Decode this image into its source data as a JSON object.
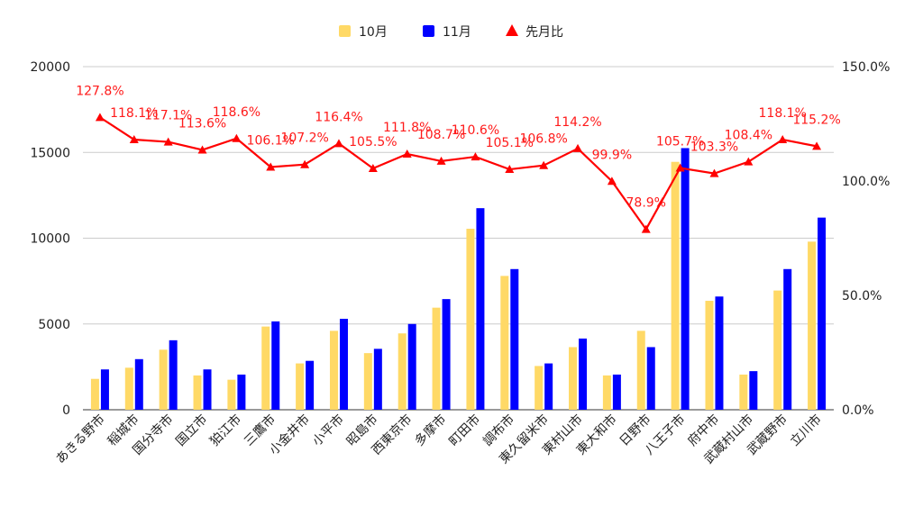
{
  "chart_data": {
    "type": "bar",
    "categories": [
      "あきる野市",
      "稲城市",
      "国分寺市",
      "国立市",
      "狛江市",
      "三鷹市",
      "小金井市",
      "小平市",
      "昭島市",
      "西東京市",
      "多摩市",
      "町田市",
      "調布市",
      "東久留米市",
      "東村山市",
      "東大和市",
      "日野市",
      "八王子市",
      "府中市",
      "武蔵村山市",
      "武蔵野市",
      "立川市"
    ],
    "series": [
      {
        "name": "10月",
        "type": "bar",
        "axis": "left",
        "color": "#ffd966",
        "values": [
          1800,
          2450,
          3500,
          2000,
          1750,
          4850,
          2700,
          4600,
          3300,
          4450,
          5950,
          10550,
          7800,
          2550,
          3650,
          2000,
          4600,
          14450,
          6350,
          2050,
          6950,
          9800
        ]
      },
      {
        "name": "11月",
        "type": "bar",
        "axis": "left",
        "color": "#0000ff",
        "values": [
          2350,
          2950,
          4050,
          2350,
          2050,
          5150,
          2850,
          5300,
          3550,
          5000,
          6450,
          11750,
          8200,
          2700,
          4150,
          2050,
          3650,
          15250,
          6600,
          2250,
          8200,
          11200
        ]
      },
      {
        "name": "先月比",
        "type": "line",
        "axis": "right",
        "color": "#ff0000",
        "values": [
          127.8,
          118.1,
          117.1,
          113.6,
          118.6,
          106.1,
          107.2,
          116.4,
          105.5,
          111.8,
          108.7,
          110.6,
          105.1,
          106.8,
          114.2,
          99.9,
          78.9,
          105.7,
          103.3,
          108.4,
          118.1,
          115.2
        ],
        "labels": [
          "127.8%",
          "118.1%",
          "117.1%",
          "113.6%",
          "118.6%",
          "106.1%",
          "107.2%",
          "116.4%",
          "105.5%",
          "111.8%",
          "108.7%",
          "110.6%",
          "105.1%",
          "106.8%",
          "114.2%",
          "99.9%",
          "78.9%",
          "105.7%",
          "103.3%",
          "108.4%",
          "118.1%",
          "115.2%"
        ]
      }
    ],
    "left_axis": {
      "ylim": [
        0,
        20000
      ],
      "ticks": [
        "0",
        "5000",
        "10000",
        "15000",
        "20000"
      ]
    },
    "right_axis": {
      "ylim": [
        0,
        150
      ],
      "ticks": [
        "0.0%",
        "50.0%",
        "100.0%",
        "150.0%"
      ]
    },
    "title": "",
    "xlabel": "",
    "ylabel": "",
    "grid": true,
    "legend_position": "top"
  }
}
